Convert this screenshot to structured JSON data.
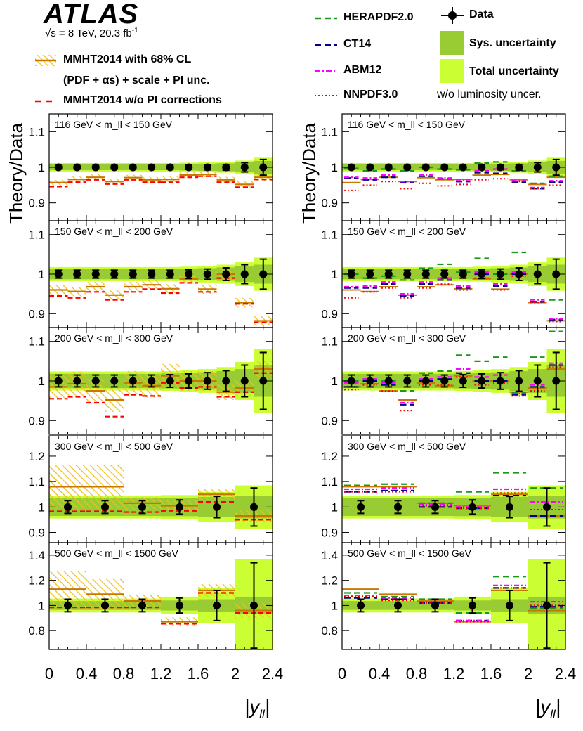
{
  "header": {
    "experiment": "ATLAS",
    "energy_label": "√s = 8 TeV, 20.3 fb",
    "energy_sup": "-1"
  },
  "legend_left": {
    "mmht_band": "MMHT2014 with 68% CL",
    "mmht_band_line2": "(PDF + αs) + scale + PI unc.",
    "mmht_nopi": "MMHT2014 w/o PI corrections"
  },
  "legend_right": {
    "herapdf": "HERAPDF2.0",
    "ct14": "CT14",
    "abm12": "ABM12",
    "nnpdf": "NNPDF3.0",
    "data": "Data",
    "sys": "Sys. uncertainty",
    "total": "Total uncertainty",
    "note": "w/o luminosity uncer."
  },
  "colors": {
    "herapdf": "#1a9a1a",
    "ct14": "#00008b",
    "abm12": "#ff00ff",
    "nnpdf": "#ff0000",
    "mmht": "#c87800",
    "mmht_hatch": "#f0c020",
    "mmht_nopi": "#ff0000",
    "sys_band": "#99cc33",
    "total_band": "#ccff33",
    "data": "#000000"
  },
  "chart_data": {
    "type": "ratio-panels",
    "ylabel": "Theory/Data",
    "xlabel": "|y_ll|",
    "x_ticks": [
      "0",
      "0.4",
      "0.8",
      "1.2",
      "1.6",
      "2",
      "2.4"
    ],
    "xlim": [
      0,
      2.4
    ],
    "panels": [
      {
        "label": "116 GeV < m_ll < 150 GeV",
        "ylim": [
          0.85,
          1.15
        ],
        "yticks": [
          0.9,
          1,
          1.1
        ],
        "ytick_labels": [
          "0.9",
          "1",
          "1.1"
        ],
        "bins": [
          [
            0,
            0.2
          ],
          [
            0.2,
            0.4
          ],
          [
            0.4,
            0.6
          ],
          [
            0.6,
            0.8
          ],
          [
            0.8,
            1.0
          ],
          [
            1.0,
            1.2
          ],
          [
            1.2,
            1.4
          ],
          [
            1.4,
            1.6
          ],
          [
            1.6,
            1.8
          ],
          [
            1.8,
            2.0
          ],
          [
            2.0,
            2.2
          ],
          [
            2.2,
            2.4
          ]
        ],
        "data_err": [
          0.005,
          0.005,
          0.005,
          0.005,
          0.005,
          0.005,
          0.005,
          0.006,
          0.007,
          0.008,
          0.013,
          0.022
        ],
        "sys": [
          0.008,
          0.008,
          0.008,
          0.008,
          0.008,
          0.008,
          0.008,
          0.009,
          0.01,
          0.011,
          0.014,
          0.018
        ],
        "total": [
          0.012,
          0.012,
          0.012,
          0.012,
          0.012,
          0.012,
          0.012,
          0.013,
          0.014,
          0.015,
          0.019,
          0.027
        ],
        "mmht": [
          0.957,
          0.966,
          0.972,
          0.96,
          0.971,
          0.965,
          0.966,
          0.978,
          0.98,
          0.965,
          0.952,
          0.972
        ],
        "mmht_err": [
          0.008,
          0.008,
          0.008,
          0.008,
          0.008,
          0.008,
          0.008,
          0.008,
          0.008,
          0.008,
          0.009,
          0.01
        ],
        "mmht_nopi": [
          0.946,
          0.958,
          0.965,
          0.953,
          0.965,
          0.958,
          0.958,
          0.972,
          0.975,
          0.958,
          0.944,
          0.966
        ],
        "herapdf": [
          0.997,
          0.99,
          0.995,
          0.99,
          1.0,
          0.995,
          0.993,
          1.012,
          1.015,
          0.99,
          0.955,
          0.975
        ],
        "ct14": [
          0.97,
          0.965,
          0.972,
          0.958,
          0.975,
          0.968,
          0.96,
          0.985,
          0.983,
          0.958,
          0.94,
          0.958
        ],
        "abm12": [
          0.972,
          0.97,
          0.978,
          0.96,
          0.978,
          0.97,
          0.965,
          0.99,
          0.995,
          0.963,
          0.943,
          0.962
        ],
        "nnpdf": [
          0.935,
          0.95,
          0.96,
          0.94,
          0.955,
          0.948,
          0.952,
          0.965,
          0.968,
          0.96,
          0.94,
          0.95
        ]
      },
      {
        "label": "150 GeV < m_ll < 200 GeV",
        "ylim": [
          0.865,
          1.135
        ],
        "yticks": [
          0.9,
          1,
          1.1
        ],
        "ytick_labels": [
          "0.9",
          "1",
          "1.1"
        ],
        "bins": [
          [
            0,
            0.2
          ],
          [
            0.2,
            0.4
          ],
          [
            0.4,
            0.6
          ],
          [
            0.6,
            0.8
          ],
          [
            0.8,
            1.0
          ],
          [
            1.0,
            1.2
          ],
          [
            1.2,
            1.4
          ],
          [
            1.4,
            1.6
          ],
          [
            1.6,
            1.8
          ],
          [
            1.8,
            2.0
          ],
          [
            2.0,
            2.2
          ],
          [
            2.2,
            2.4
          ]
        ],
        "data_err": [
          0.01,
          0.01,
          0.01,
          0.01,
          0.01,
          0.01,
          0.01,
          0.011,
          0.013,
          0.016,
          0.024,
          0.038
        ],
        "sys": [
          0.013,
          0.013,
          0.013,
          0.013,
          0.013,
          0.013,
          0.013,
          0.014,
          0.015,
          0.017,
          0.02,
          0.024
        ],
        "total": [
          0.018,
          0.018,
          0.018,
          0.018,
          0.018,
          0.018,
          0.018,
          0.019,
          0.021,
          0.024,
          0.03,
          0.042
        ],
        "mmht": [
          0.96,
          0.956,
          0.968,
          0.947,
          0.968,
          0.973,
          0.963,
          0.988,
          0.962,
          1.0,
          0.928,
          0.882
        ],
        "mmht_err": [
          0.012,
          0.012,
          0.012,
          0.012,
          0.012,
          0.012,
          0.012,
          0.012,
          0.012,
          0.012,
          0.012,
          0.012
        ],
        "mmht_nopi": [
          0.945,
          0.94,
          0.955,
          0.935,
          0.955,
          0.962,
          0.952,
          0.978,
          0.955,
          0.99,
          0.925,
          0.878
        ],
        "herapdf": [
          1.0,
          0.99,
          0.995,
          0.985,
          1.015,
          1.025,
          1.005,
          1.04,
          1.0,
          1.055,
          0.93,
          0.935
        ],
        "ct14": [
          0.965,
          0.965,
          0.975,
          0.945,
          0.975,
          0.985,
          0.965,
          1.0,
          0.97,
          1.0,
          0.93,
          0.885
        ],
        "abm12": [
          0.968,
          0.97,
          0.98,
          0.95,
          0.98,
          0.99,
          0.97,
          1.005,
          0.975,
          1.005,
          0.935,
          0.887
        ],
        "nnpdf": [
          0.94,
          0.955,
          0.965,
          0.94,
          0.965,
          0.975,
          0.96,
          0.99,
          0.96,
          0.995,
          0.928,
          0.88
        ]
      },
      {
        "label": "200 GeV < m_ll < 300 GeV",
        "ylim": [
          0.865,
          1.135
        ],
        "yticks": [
          0.9,
          1,
          1.1
        ],
        "ytick_labels": [
          "0.9",
          "1",
          "1.1"
        ],
        "bins": [
          [
            0,
            0.2
          ],
          [
            0.2,
            0.4
          ],
          [
            0.4,
            0.6
          ],
          [
            0.6,
            0.8
          ],
          [
            0.8,
            1.0
          ],
          [
            1.0,
            1.2
          ],
          [
            1.2,
            1.4
          ],
          [
            1.4,
            1.6
          ],
          [
            1.6,
            1.8
          ],
          [
            1.8,
            2.0
          ],
          [
            2.0,
            2.2
          ],
          [
            2.2,
            2.4
          ]
        ],
        "data_err": [
          0.015,
          0.015,
          0.015,
          0.015,
          0.015,
          0.015,
          0.016,
          0.018,
          0.021,
          0.026,
          0.04,
          0.072
        ],
        "sys": [
          0.018,
          0.018,
          0.018,
          0.018,
          0.018,
          0.018,
          0.019,
          0.02,
          0.022,
          0.025,
          0.03,
          0.04
        ],
        "total": [
          0.024,
          0.024,
          0.024,
          0.024,
          0.024,
          0.024,
          0.025,
          0.027,
          0.03,
          0.035,
          0.048,
          0.08
        ],
        "mmht": [
          0.985,
          0.993,
          0.975,
          0.952,
          0.995,
          0.988,
          1.013,
          1.0,
          1.0,
          0.972,
          0.982,
          1.03
        ],
        "mmht_err": [
          0.03,
          0.03,
          0.03,
          0.03,
          0.03,
          0.03,
          0.03,
          0.025,
          0.025,
          0.02,
          0.02,
          0.02
        ],
        "mmht_nopi": [
          0.955,
          0.96,
          0.945,
          0.91,
          0.965,
          0.962,
          0.995,
          0.982,
          0.985,
          0.96,
          0.972,
          1.02
        ],
        "herapdf": [
          1.0,
          1.005,
          1.0,
          0.975,
          1.02,
          1.025,
          1.065,
          1.05,
          1.06,
          0.97,
          1.06,
          1.125
        ],
        "ct14": [
          0.985,
          1.0,
          0.99,
          0.94,
          1.0,
          1.005,
          1.02,
          1.0,
          1.0,
          0.965,
          0.985,
          1.04
        ],
        "abm12": [
          0.995,
          1.005,
          0.995,
          0.945,
          1.005,
          1.01,
          1.03,
          1.01,
          1.015,
          0.968,
          0.99,
          1.045
        ],
        "nnpdf": [
          0.978,
          0.99,
          0.975,
          0.925,
          0.99,
          0.99,
          1.01,
          0.99,
          0.995,
          0.962,
          0.975,
          1.035
        ]
      },
      {
        "label": "300 GeV < m_ll < 500 GeV",
        "ylim": [
          0.86,
          1.28
        ],
        "yticks": [
          0.9,
          1,
          1.1,
          1.2
        ],
        "ytick_labels": [
          "0.9",
          "1",
          "1.1",
          "1.2"
        ],
        "bins": [
          [
            0,
            0.4
          ],
          [
            0.4,
            0.8
          ],
          [
            0.8,
            1.2
          ],
          [
            1.2,
            1.6
          ],
          [
            1.6,
            2.0
          ],
          [
            2.0,
            2.4
          ]
        ],
        "data_err": [
          0.025,
          0.025,
          0.025,
          0.028,
          0.042,
          0.075
        ],
        "sys": [
          0.035,
          0.035,
          0.035,
          0.036,
          0.04,
          0.045
        ],
        "total": [
          0.045,
          0.045,
          0.045,
          0.047,
          0.06,
          0.085
        ],
        "mmht": [
          1.08,
          1.08,
          1.015,
          1.005,
          1.05,
          0.965
        ],
        "mmht_err": [
          0.085,
          0.085,
          0.025,
          0.02,
          0.02,
          0.025
        ],
        "mmht_nopi": [
          0.983,
          0.983,
          0.98,
          0.985,
          1.02,
          0.95
        ],
        "herapdf": [
          1.085,
          1.09,
          1.015,
          1.06,
          1.135,
          1.075
        ],
        "ct14": [
          1.06,
          1.065,
          1.0,
          0.995,
          1.045,
          0.965
        ],
        "abm12": [
          1.07,
          1.075,
          1.01,
          1.0,
          1.07,
          1.02
        ],
        "nnpdf": [
          1.06,
          1.06,
          1.005,
          0.995,
          1.055,
          0.99
        ]
      },
      {
        "label": "500 GeV < m_ll < 1500 GeV",
        "ylim": [
          0.65,
          1.5
        ],
        "yticks": [
          0.8,
          1,
          1.2,
          1.4
        ],
        "ytick_labels": [
          "0.8",
          "1",
          "1.2",
          "1.4"
        ],
        "bins": [
          [
            0,
            0.4
          ],
          [
            0.4,
            0.8
          ],
          [
            0.8,
            1.2
          ],
          [
            1.2,
            1.6
          ],
          [
            1.6,
            2.0
          ],
          [
            2.0,
            2.4
          ]
        ],
        "data_err": [
          0.05,
          0.05,
          0.05,
          0.06,
          0.12,
          0.34
        ],
        "sys": [
          0.035,
          0.035,
          0.035,
          0.04,
          0.05,
          0.07
        ],
        "total": [
          0.055,
          0.055,
          0.055,
          0.07,
          0.14,
          0.37
        ],
        "mmht": [
          1.13,
          1.09,
          1.035,
          0.87,
          1.12,
          0.96
        ],
        "mmht_err": [
          0.14,
          0.12,
          0.05,
          0.035,
          0.05,
          0.06
        ],
        "mmht_nopi": [
          0.985,
          0.985,
          0.985,
          0.855,
          1.1,
          0.94
        ],
        "herapdf": [
          1.1,
          1.07,
          1.05,
          0.94,
          1.23,
          0.98
        ],
        "ct14": [
          1.06,
          1.05,
          1.02,
          0.88,
          1.14,
          0.99
        ],
        "abm12": [
          1.08,
          1.06,
          1.03,
          0.88,
          1.16,
          1.03
        ],
        "nnpdf": [
          1.07,
          1.04,
          1.02,
          0.87,
          1.14,
          1.0
        ]
      }
    ]
  }
}
